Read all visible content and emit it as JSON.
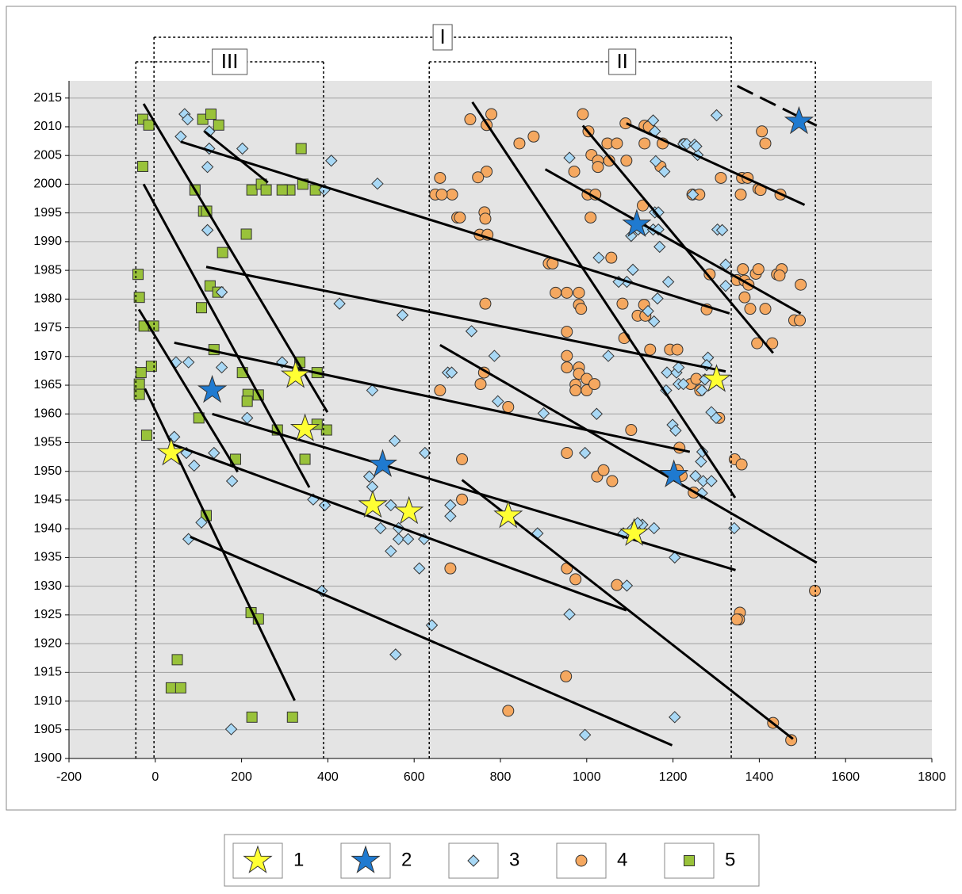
{
  "chart_data": {
    "type": "scatter",
    "xlim": [
      -200,
      1800
    ],
    "ylim": [
      1900,
      2018
    ],
    "xticks": [
      -200,
      0,
      200,
      400,
      600,
      800,
      1000,
      1200,
      1400,
      1600,
      1800
    ],
    "yticks": [
      1900,
      1905,
      1910,
      1915,
      1920,
      1925,
      1930,
      1935,
      1940,
      1945,
      1950,
      1955,
      1960,
      1965,
      1970,
      1975,
      1980,
      1985,
      1990,
      1995,
      2000,
      2005,
      2010,
      2015
    ],
    "grid": true,
    "series": [
      {
        "name": "1",
        "color": "#ffff33",
        "marker": "star",
        "x": [
          37,
          325,
          347,
          504,
          588,
          818,
          1110,
          1301
        ],
        "y": [
          1953.2,
          1966.7,
          1957.4,
          1944.1,
          1943,
          1942.3,
          1939.2,
          1966
        ]
      },
      {
        "name": "2",
        "color": "#1f7ad0",
        "marker": "star",
        "x": [
          132,
          527,
          1116,
          1202,
          1492
        ],
        "y": [
          1964.1,
          1951.2,
          1993,
          1949.4,
          2010.9
        ]
      },
      {
        "name": "3",
        "color": "#a8d8f5",
        "marker": "diamond",
        "x": [
          68,
          75,
          59,
          125,
          121,
          125,
          202,
          408,
          392,
          515,
          121,
          154,
          427,
          573,
          294,
          77,
          48,
          154,
          503,
          678,
          687,
          213,
          44,
          72,
          90,
          136,
          178,
          107,
          77,
          366,
          393,
          386,
          555,
          496,
          503,
          546,
          522,
          546,
          564,
          564,
          586,
          623,
          612,
          641,
          557,
          625,
          684,
          684,
          733,
          786,
          794,
          900,
          886,
          960,
          996,
          1023,
          960,
          996,
          1050,
          1028,
          1107,
          1093,
          1074,
          1103,
          1119,
          1136,
          1154,
          1166,
          1158,
          1166,
          1169,
          1164,
          1142,
          1156,
          1189,
          1158,
          1154,
          1160,
          1180,
          1186,
          1184,
          1199,
          1206,
          1208,
          1213,
          1213,
          1224,
          1224,
          1232,
          1250,
          1257,
          1254,
          1246,
          1303,
          1314,
          1322,
          1322,
          1301,
          1281,
          1278,
          1274,
          1267,
          1268,
          1265,
          1270,
          1267,
          1252,
          1289,
          1289,
          1300,
          1342,
          1204,
          1204,
          1085,
          1093,
          1107,
          1129,
          1156,
          1118,
          176
        ],
        "y": [
          2012.2,
          2011.3,
          2008.3,
          2006.2,
          2003,
          2009.2,
          2006.2,
          2004.1,
          1999,
          2000.1,
          1992,
          1981.2,
          1979.2,
          1977.2,
          1969,
          1969,
          1969,
          1968.1,
          1964.1,
          1967.2,
          1967.2,
          1959.3,
          1956,
          1953.2,
          1951,
          1953.2,
          1948.3,
          1941.1,
          1938.2,
          1945.1,
          1944.1,
          1929.2,
          1955.3,
          1949.1,
          1947.3,
          1944.1,
          1940.1,
          1936.1,
          1940.1,
          1938.2,
          1938.2,
          1938.2,
          1933.1,
          1923.2,
          1918.1,
          1953.2,
          1944.1,
          1942.2,
          1974.4,
          1970.1,
          1962.2,
          1960.1,
          1939.2,
          2004.6,
          1953.2,
          1960,
          1925.1,
          1904.1,
          1970.1,
          1987.2,
          1985.1,
          1983,
          1983,
          1991,
          1992.1,
          1992.1,
          1992.1,
          1992.1,
          1995.1,
          1995.1,
          1989.1,
          1980.1,
          1977.9,
          1976.1,
          1983,
          2009.2,
          2011.1,
          2004,
          2002.2,
          1967.2,
          1964.1,
          1958.1,
          1957.1,
          1967.2,
          1968.1,
          1965.2,
          1965.2,
          2007,
          2007,
          2006.9,
          2005.1,
          2006.6,
          1998.2,
          1992.1,
          1992,
          1986,
          1982.3,
          2012,
          1969.8,
          1968.5,
          1966,
          1964.1,
          1953.4,
          1951.7,
          1948.3,
          1946.2,
          1949.2,
          1948.3,
          1960.3,
          1959.3,
          1940.1,
          1935,
          1907.2,
          1939.2,
          1930.1,
          1940.1,
          1940.7,
          1940.1,
          1941,
          1905.1
        ]
      },
      {
        "name": "4",
        "color": "#f5a860",
        "marker": "circle",
        "x": [
          730,
          779,
          768,
          768,
          748,
          660,
          649,
          688,
          664,
          700,
          706,
          763,
          765,
          752,
          770,
          844,
          877,
          971,
          991,
          1004,
          1011,
          1026,
          1026,
          1048,
          1070,
          1052,
          1092,
          1090,
          1134,
          1176,
          1134,
          1144,
          1171,
          1002,
          1020,
          1009,
          1130,
          912,
          921,
          928,
          954,
          982,
          982,
          987,
          1083,
          1057,
          1118,
          1136,
          1133,
          1087,
          1147,
          1193,
          1210,
          765,
          954,
          954,
          982,
          982,
          1000,
          954,
          974,
          974,
          1000,
          1018,
          762,
          754,
          660,
          818,
          1103,
          1215,
          954,
          711,
          711,
          1024,
          1039,
          1059,
          684,
          954,
          974,
          1070,
          952,
          818,
          1211,
          1220,
          1248,
          1263,
          1241,
          1254,
          1278,
          1285,
          1245,
          1226,
          1311,
          1307,
          1343,
          1359,
          1348,
          1362,
          1366,
          1375,
          1392,
          1398,
          1366,
          1379,
          1414,
          1395,
          1430,
          1360,
          1373,
          1357,
          1398,
          1403,
          1449,
          1406,
          1414,
          1441,
          1452,
          1447,
          1481,
          1494,
          1496,
          1355,
          1353,
          1348,
          1432,
          1474,
          1529,
          1261
        ],
        "y": [
          2011.3,
          2012.2,
          2010.3,
          2002.2,
          2001.2,
          2001.1,
          1998.2,
          1998.2,
          1998.2,
          1994.2,
          1994.2,
          1995.1,
          1994,
          1991.2,
          1991.2,
          2007.1,
          2008.3,
          2002.2,
          2012.2,
          2009.2,
          2005.1,
          2004.1,
          2003,
          2007.1,
          2007.1,
          2004.1,
          2004.1,
          2010.6,
          2007.1,
          2007.1,
          2010.2,
          2010,
          2003.1,
          1998.2,
          1998.2,
          1994.2,
          1996.3,
          1986.2,
          1986.2,
          1981.1,
          1981.1,
          1981.1,
          1979,
          1978.3,
          1979.2,
          1987.2,
          1977.1,
          1977.1,
          1979,
          1973.2,
          1971.2,
          1971.2,
          1971.2,
          1979.2,
          1974.3,
          1970.1,
          1968.1,
          1967,
          1966.1,
          1968.1,
          1965.1,
          1964.1,
          1964.1,
          1965.2,
          1967.2,
          1965.2,
          1964.1,
          1961.2,
          1957.2,
          1954.1,
          1953.2,
          1952.1,
          1945.1,
          1949.1,
          1950.2,
          1948.3,
          1933.1,
          1933.1,
          1931.2,
          1930.2,
          1914.3,
          1908.3,
          1950.2,
          1949.2,
          1946.3,
          1964.1,
          1965.2,
          1966.1,
          1978.2,
          1984.3,
          1998.2,
          2007,
          2001.1,
          1959.3,
          1952.1,
          1951.2,
          1983.3,
          1985.2,
          1983.2,
          1982.5,
          1984.4,
          1985.2,
          1980.3,
          1978.3,
          1978.3,
          1972.3,
          1972.3,
          2001.1,
          2001.1,
          1998.2,
          1999.2,
          1999,
          1998.2,
          2009.2,
          2007.1,
          1984.3,
          1985.2,
          1984.1,
          1976.3,
          1976.3,
          1982.5,
          1925.4,
          1924.2,
          1924.2,
          1906.2,
          1903.2,
          1929.2,
          1998.2
        ]
      },
      {
        "name": "5",
        "color": "#99c23a",
        "marker": "square",
        "x": [
          -29,
          -15,
          -29,
          -40,
          -37,
          -26,
          -4,
          -9,
          -33,
          -37,
          -37,
          -20,
          51,
          37,
          59,
          110,
          129,
          147,
          92,
          112,
          119,
          156,
          211,
          127,
          145,
          107,
          136,
          202,
          215,
          239,
          213,
          101,
          283,
          186,
          347,
          397,
          375,
          335,
          375,
          118,
          222,
          239,
          224,
          318,
          338,
          224,
          246,
          257,
          312,
          342,
          371,
          294
        ],
        "y": [
          2011.3,
          2010.3,
          2003.1,
          1984.3,
          1980.3,
          1975.3,
          1975.3,
          1968.3,
          1967.2,
          1965.2,
          1963.4,
          1956.3,
          1917.2,
          1912.3,
          1912.3,
          2011.3,
          2012.2,
          2010.3,
          1999,
          1995.3,
          1995.3,
          1988.1,
          1991.3,
          1982.3,
          1981.2,
          1978.5,
          1971.2,
          1967.2,
          1963.4,
          1963.3,
          1962.2,
          1959.3,
          1957.2,
          1952.1,
          1952.1,
          1957.2,
          1958.2,
          1969,
          1967.2,
          1942.3,
          1925.4,
          1924.3,
          1907.2,
          1907.2,
          2006.2,
          1999,
          2000,
          1999,
          1999,
          2000,
          1999,
          1999
        ]
      }
    ],
    "lines": [
      {
        "x": [
          -27,
          399
        ],
        "y": [
          2014,
          1960.3
        ]
      },
      {
        "x": [
          -27,
          357
        ],
        "y": [
          2000,
          1947.2
        ]
      },
      {
        "x": [
          -38,
          191
        ],
        "y": [
          1978.2,
          1949.9
        ]
      },
      {
        "x": [
          -24,
          323
        ],
        "y": [
          1964.4,
          1910.1
        ]
      },
      {
        "x": [
          114,
          261
        ],
        "y": [
          2009.2,
          2000.3
        ]
      },
      {
        "x": [
          59,
          1331
        ],
        "y": [
          2007.4,
          1977.5
        ]
      },
      {
        "x": [
          118,
          1322
        ],
        "y": [
          1985.6,
          1967.4
        ]
      },
      {
        "x": [
          44,
          1239
        ],
        "y": [
          1972.4,
          1953.4
        ]
      },
      {
        "x": [
          132,
          1345
        ],
        "y": [
          1960,
          1932.8
        ]
      },
      {
        "x": [
          40,
          1092
        ],
        "y": [
          1954.7,
          1925.8
        ]
      },
      {
        "x": [
          81,
          1198
        ],
        "y": [
          1938.6,
          1902.3
        ]
      },
      {
        "x": [
          735,
          1344
        ],
        "y": [
          2014.3,
          1945.4
        ]
      },
      {
        "x": [
          660,
          1533
        ],
        "y": [
          1972,
          1934.1
        ]
      },
      {
        "x": [
          711,
          1478
        ],
        "y": [
          1948.5,
          1903.4
        ]
      },
      {
        "x": [
          991,
          1432
        ],
        "y": [
          2010.2,
          1970.6
        ]
      },
      {
        "x": [
          904,
          1496
        ],
        "y": [
          2002.6,
          1977.5
        ]
      },
      {
        "x": [
          1092,
          1505
        ],
        "y": [
          2010.6,
          1996.4
        ]
      },
      {
        "x": [
          1349,
          1533
        ],
        "y": [
          2017.1,
          2010.2
        ],
        "dashed": true
      }
    ],
    "regions": [
      {
        "label": "I",
        "x": [
          -3,
          1335
        ],
        "level": 2
      },
      {
        "label": "II",
        "x": [
          635,
          1530
        ],
        "level": 1
      },
      {
        "label": "III",
        "x": [
          -45,
          390
        ],
        "level": 1
      }
    ]
  }
}
